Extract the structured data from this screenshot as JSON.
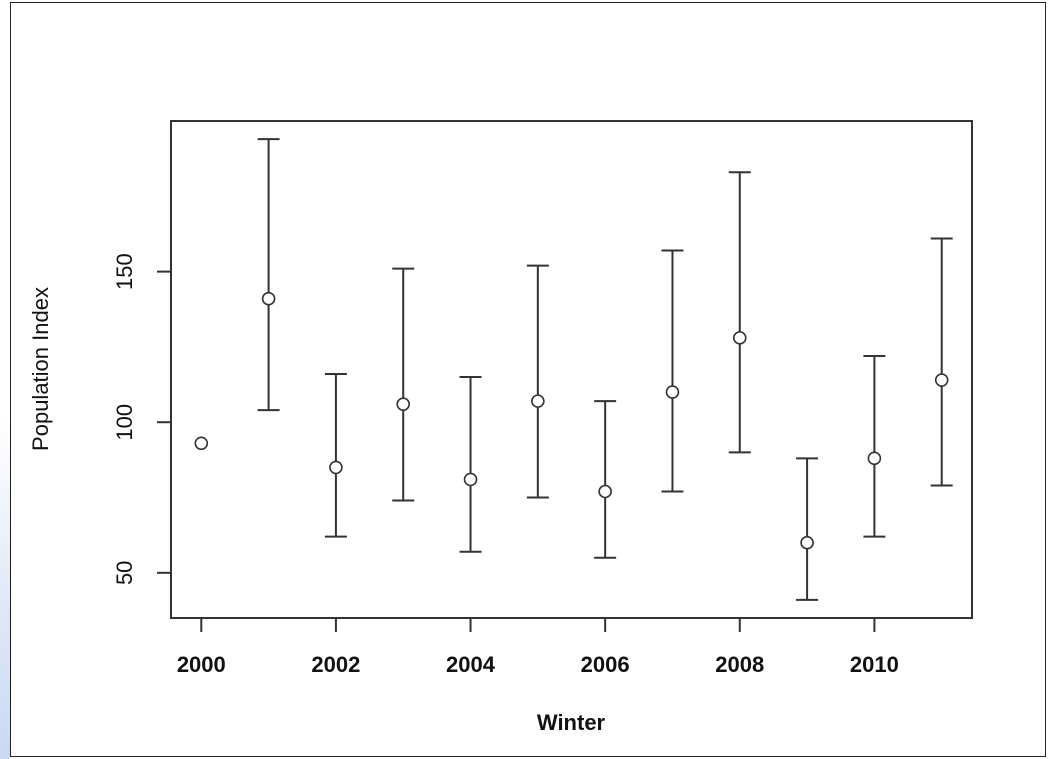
{
  "chart_data": {
    "type": "scatter",
    "title": "",
    "xlabel": "Winter",
    "ylabel": "Population Index",
    "xlim": [
      1999.55,
      2011.45
    ],
    "ylim": [
      35,
      200
    ],
    "xticks": [
      2000,
      2002,
      2004,
      2006,
      2008,
      2010
    ],
    "xtick_labels": [
      "2000",
      "2002",
      "2004",
      "2006",
      "2008",
      "2010"
    ],
    "yticks": [
      50,
      100,
      150
    ],
    "ytick_labels": [
      "50",
      "100",
      "150"
    ],
    "grid": false,
    "legend": "none",
    "error_bars": true,
    "points": [
      {
        "x": 2000,
        "y": 93,
        "low": null,
        "high": null
      },
      {
        "x": 2001,
        "y": 141,
        "low": 104,
        "high": 194
      },
      {
        "x": 2002,
        "y": 85,
        "low": 62,
        "high": 116
      },
      {
        "x": 2003,
        "y": 106,
        "low": 74,
        "high": 151
      },
      {
        "x": 2004,
        "y": 81,
        "low": 57,
        "high": 115
      },
      {
        "x": 2005,
        "y": 107,
        "low": 75,
        "high": 152
      },
      {
        "x": 2006,
        "y": 77,
        "low": 55,
        "high": 107
      },
      {
        "x": 2007,
        "y": 110,
        "low": 77,
        "high": 157
      },
      {
        "x": 2008,
        "y": 128,
        "low": 90,
        "high": 183
      },
      {
        "x": 2009,
        "y": 60,
        "low": 41,
        "high": 88
      },
      {
        "x": 2010,
        "y": 88,
        "low": 62,
        "high": 122
      },
      {
        "x": 2011,
        "y": 114,
        "low": 79,
        "high": 161
      }
    ]
  }
}
